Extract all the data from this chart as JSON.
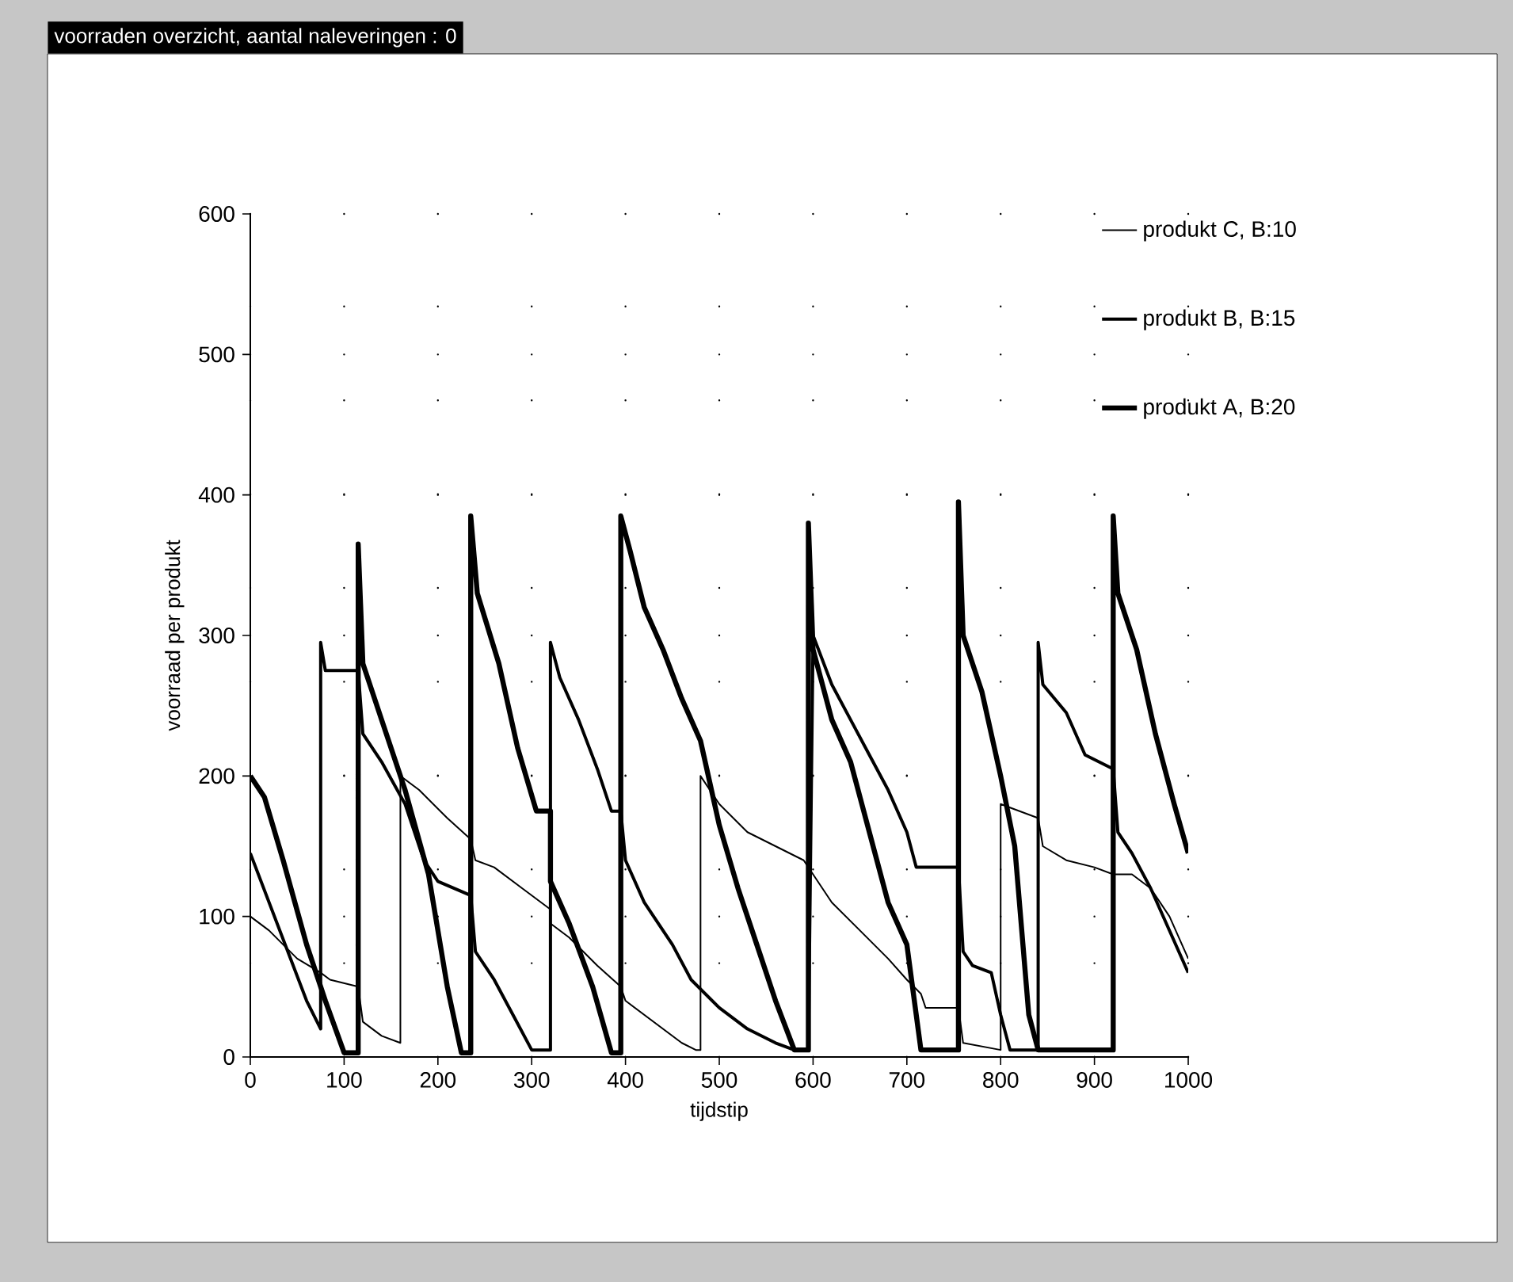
{
  "chart_data": {
    "type": "line",
    "title": "voorraden overzicht, aantal naleveringen : 0",
    "xlabel": "tijdstip",
    "ylabel": "voorraad per produkt",
    "xlim": [
      0,
      1000
    ],
    "ylim": [
      0,
      600
    ],
    "xticks": [
      0,
      100,
      200,
      300,
      400,
      500,
      600,
      700,
      800,
      900,
      1000
    ],
    "yticks": [
      0,
      100,
      200,
      300,
      400,
      500,
      600
    ],
    "grid": true,
    "legend": "top right",
    "line_style": "solid",
    "series": [
      {
        "name": "produkt C, B:10",
        "color": "#000000",
        "x": [
          0,
          20,
          50,
          75,
          85,
          115,
          120,
          140,
          160,
          160,
          180,
          210,
          235,
          240,
          260,
          290,
          320,
          320,
          340,
          370,
          395,
          400,
          430,
          460,
          475,
          480,
          480,
          500,
          530,
          560,
          590,
          600,
          620,
          650,
          680,
          700,
          715,
          720,
          755,
          760,
          800,
          800,
          820,
          840,
          845,
          870,
          900,
          920,
          940,
          960,
          980,
          1000
        ],
        "values": [
          100,
          90,
          70,
          60,
          55,
          50,
          25,
          15,
          10,
          200,
          190,
          170,
          155,
          140,
          135,
          120,
          105,
          95,
          85,
          65,
          50,
          40,
          25,
          10,
          5,
          5,
          200,
          180,
          160,
          150,
          140,
          130,
          110,
          90,
          70,
          55,
          45,
          35,
          35,
          10,
          5,
          180,
          175,
          170,
          150,
          140,
          135,
          130,
          130,
          120,
          100,
          70
        ]
      },
      {
        "name": "produkt B, B:15",
        "color": "#000000",
        "x": [
          0,
          20,
          40,
          60,
          75,
          75,
          80,
          115,
          120,
          140,
          165,
          185,
          200,
          235,
          240,
          260,
          280,
          300,
          320,
          320,
          330,
          350,
          370,
          385,
          395,
          400,
          420,
          450,
          470,
          500,
          530,
          560,
          580,
          595,
          600,
          620,
          640,
          660,
          680,
          700,
          710,
          755,
          760,
          770,
          790,
          800,
          810,
          840,
          840,
          845,
          870,
          890,
          920,
          925,
          940,
          960,
          980,
          1000
        ],
        "values": [
          145,
          110,
          75,
          40,
          20,
          295,
          275,
          275,
          230,
          210,
          180,
          140,
          125,
          115,
          75,
          55,
          30,
          5,
          5,
          295,
          270,
          240,
          205,
          175,
          175,
          140,
          110,
          80,
          55,
          35,
          20,
          10,
          5,
          5,
          300,
          265,
          240,
          215,
          190,
          160,
          135,
          135,
          75,
          65,
          60,
          30,
          5,
          5,
          295,
          265,
          245,
          215,
          205,
          160,
          145,
          120,
          90,
          60
        ]
      },
      {
        "name": "produkt A, B:20",
        "color": "#000000",
        "x": [
          0,
          15,
          35,
          60,
          80,
          100,
          115,
          115,
          120,
          140,
          165,
          190,
          210,
          225,
          235,
          235,
          242,
          265,
          285,
          305,
          320,
          320,
          340,
          365,
          385,
          395,
          395,
          405,
          420,
          440,
          460,
          480,
          500,
          520,
          540,
          560,
          580,
          595,
          595,
          600,
          620,
          640,
          660,
          680,
          700,
          712,
          715,
          755,
          755,
          760,
          780,
          800,
          815,
          830,
          840,
          920,
          920,
          925,
          945,
          965,
          985,
          1000
        ],
        "values": [
          200,
          185,
          140,
          80,
          40,
          3,
          3,
          365,
          280,
          240,
          190,
          130,
          50,
          3,
          3,
          385,
          330,
          280,
          220,
          175,
          175,
          125,
          95,
          50,
          3,
          3,
          385,
          360,
          320,
          290,
          255,
          225,
          165,
          120,
          80,
          40,
          5,
          5,
          380,
          290,
          240,
          210,
          160,
          110,
          80,
          20,
          5,
          5,
          395,
          300,
          260,
          200,
          150,
          30,
          5,
          5,
          385,
          330,
          290,
          230,
          180,
          145
        ]
      }
    ]
  }
}
